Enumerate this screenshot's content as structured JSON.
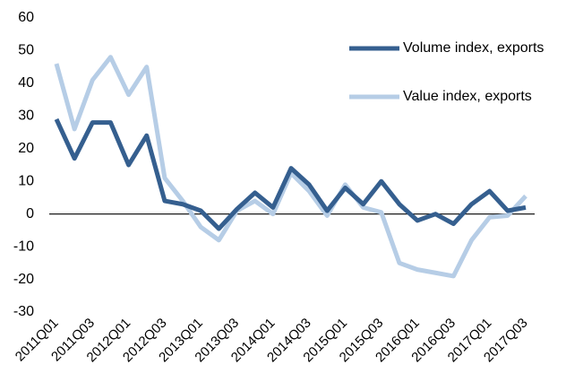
{
  "chart_data": {
    "type": "line",
    "categories": [
      "2011Q01",
      null,
      "2011Q03",
      null,
      "2012Q01",
      null,
      "2012Q03",
      null,
      "2013Q01",
      null,
      "2013Q03",
      null,
      "2014Q01",
      null,
      "2014Q03",
      null,
      "2015Q01",
      null,
      "2015Q03",
      null,
      "2016Q01",
      null,
      "2016Q03",
      null,
      "2017Q01",
      null,
      "2017Q03"
    ],
    "series": [
      {
        "name": "Volume index, exports",
        "color": "#355f8f",
        "values": [
          29,
          17,
          28,
          28,
          15,
          24,
          4,
          3,
          1,
          -4.5,
          1.5,
          6.5,
          2,
          14,
          9,
          1,
          8,
          3,
          10,
          3,
          -2,
          0,
          -3,
          3,
          7,
          1,
          2
        ]
      },
      {
        "name": "Value index, exports",
        "color": "#b6cde6",
        "values": [
          46,
          26,
          41,
          48,
          36.5,
          45,
          11,
          4,
          -4,
          -8,
          1,
          4,
          0,
          12.5,
          7,
          -0.5,
          9,
          2,
          0.5,
          -15,
          -17,
          -18,
          -19,
          -8,
          -1,
          -0.5,
          5.5
        ]
      }
    ],
    "ylim": [
      -30,
      60
    ],
    "yticks": [
      -30,
      -20,
      -10,
      0,
      10,
      20,
      30,
      40,
      50,
      60
    ],
    "legend": "upper right"
  }
}
